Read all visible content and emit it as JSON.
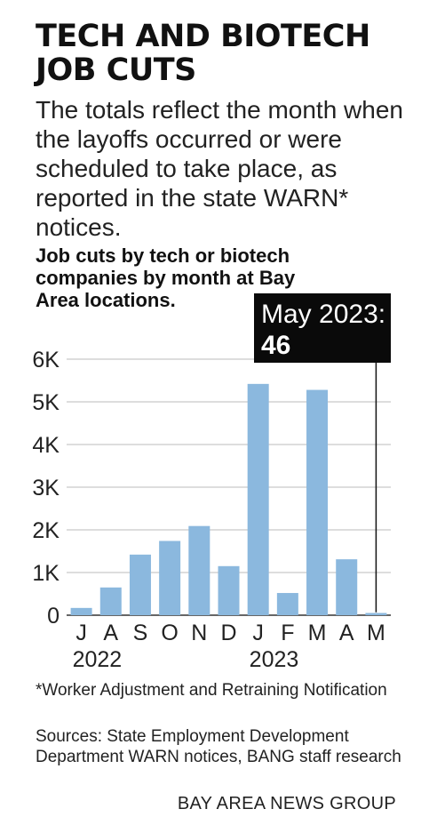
{
  "title": "TECH AND BIOTECH JOB CUTS",
  "subtitle": "The totals reflect the month when the layoffs occurred or were scheduled to take place, as reported in the state WARN* notices.",
  "chart_heading": "Job cuts by tech or biotech companies by month at Bay Area locations.",
  "callout": {
    "label": "May 2023:",
    "value": "46"
  },
  "footnote": "*Worker Adjustment and Retraining Notification",
  "sources": "Sources: State Employment Development Department WARN notices, BANG staff research",
  "credit": "BAY AREA NEWS GROUP",
  "colors": {
    "bar": "#8bb8de",
    "callout_bg": "#0a0a0a",
    "callout_text": "#ffffff",
    "grid": "#bbbbbb"
  },
  "chart_data": {
    "type": "bar",
    "categories": [
      "J",
      "A",
      "S",
      "O",
      "N",
      "D",
      "J",
      "F",
      "M",
      "A",
      "M"
    ],
    "values": [
      170,
      650,
      1420,
      1740,
      2090,
      1150,
      5420,
      520,
      5280,
      1310,
      46
    ],
    "year_labels": [
      {
        "label": "2022",
        "category_index": 0
      },
      {
        "label": "2023",
        "category_index": 6
      }
    ],
    "y_ticks": [
      0,
      1000,
      2000,
      3000,
      4000,
      5000,
      6000
    ],
    "y_tick_labels": [
      "0",
      "1K",
      "2K",
      "3K",
      "4K",
      "5K",
      "6K"
    ],
    "ylim": [
      0,
      6000
    ],
    "title": "Job cuts by tech or biotech companies by month at Bay Area locations.",
    "xlabel": "",
    "ylabel": "",
    "grid": true,
    "highlight_index": 10
  }
}
